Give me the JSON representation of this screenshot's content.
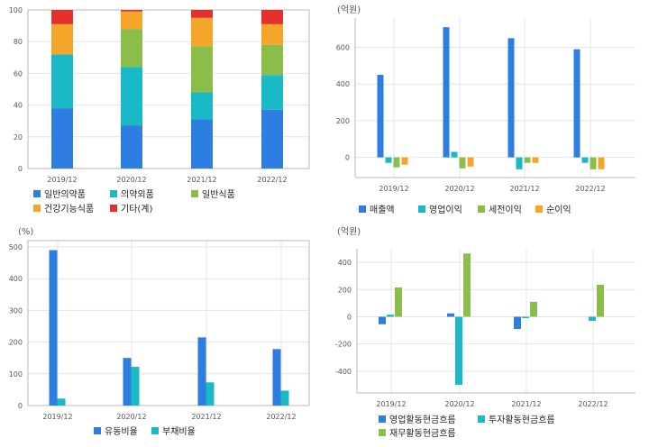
{
  "colors": {
    "blue": "#2e7de1",
    "cyan": "#1ab9c8",
    "green": "#8bbd4a",
    "orange": "#f5a62a",
    "red": "#e3312d"
  },
  "chart_data": [
    {
      "id": "c1",
      "type": "bar",
      "stacked": true,
      "unit": "",
      "categories": [
        "2019/12",
        "2020/12",
        "2021/12",
        "2022/12"
      ],
      "ylim": [
        0,
        100
      ],
      "yticks": [
        0,
        20,
        40,
        60,
        80,
        100
      ],
      "grid": true,
      "legend_position": "bottom",
      "series": [
        {
          "name": "일반의약품",
          "color": "blue",
          "values": [
            38,
            27,
            31,
            37
          ]
        },
        {
          "name": "의약외품",
          "color": "cyan",
          "values": [
            34,
            37,
            17,
            22
          ]
        },
        {
          "name": "일반식품",
          "color": "green",
          "values": [
            0,
            24,
            29,
            19
          ]
        },
        {
          "name": "건강기능식품",
          "color": "orange",
          "values": [
            19,
            11,
            18,
            13
          ]
        },
        {
          "name": "기타(계)",
          "color": "red",
          "values": [
            9,
            1,
            5,
            9
          ]
        }
      ]
    },
    {
      "id": "c2",
      "type": "bar",
      "unit": "(억원)",
      "categories": [
        "2019/12",
        "2020/12",
        "2021/12",
        "2022/12"
      ],
      "ylim": [
        -110,
        760
      ],
      "yticks": [
        0,
        200,
        400,
        600
      ],
      "grid": true,
      "legend_position": "bottom",
      "series": [
        {
          "name": "매출액",
          "color": "blue",
          "values": [
            450,
            710,
            650,
            590
          ]
        },
        {
          "name": "영업이익",
          "color": "cyan",
          "values": [
            -30,
            30,
            -65,
            -30
          ]
        },
        {
          "name": "세전이익",
          "color": "green",
          "values": [
            -55,
            -60,
            -30,
            -65
          ]
        },
        {
          "name": "순이익",
          "color": "orange",
          "values": [
            -40,
            -50,
            -30,
            -65
          ]
        }
      ]
    },
    {
      "id": "c3",
      "type": "bar",
      "unit": "(%)",
      "categories": [
        "2019/12",
        "2020/12",
        "2021/12",
        "2022/12"
      ],
      "ylim": [
        0,
        520
      ],
      "yticks": [
        0,
        100,
        200,
        300,
        400,
        500
      ],
      "grid": true,
      "legend_position": "bottom",
      "series": [
        {
          "name": "유동비율",
          "color": "blue",
          "values": [
            490,
            150,
            215,
            178
          ]
        },
        {
          "name": "부채비율",
          "color": "cyan",
          "values": [
            22,
            122,
            73,
            47
          ]
        }
      ]
    },
    {
      "id": "c4",
      "type": "bar",
      "unit": "(억원)",
      "categories": [
        "2019/12",
        "2020/12",
        "2021/12",
        "2022/12"
      ],
      "ylim": [
        -560,
        500
      ],
      "yticks": [
        -400,
        -200,
        0,
        200,
        400
      ],
      "grid": true,
      "legend_position": "bottom",
      "series": [
        {
          "name": "영업활동현금흐름",
          "color": "blue",
          "values": [
            -55,
            25,
            -90,
            0
          ]
        },
        {
          "name": "투자활동현금흐름",
          "color": "cyan",
          "values": [
            15,
            -500,
            -10,
            -30
          ]
        },
        {
          "name": "재무활동현금흐름",
          "color": "green",
          "values": [
            215,
            465,
            110,
            235
          ]
        }
      ]
    }
  ]
}
